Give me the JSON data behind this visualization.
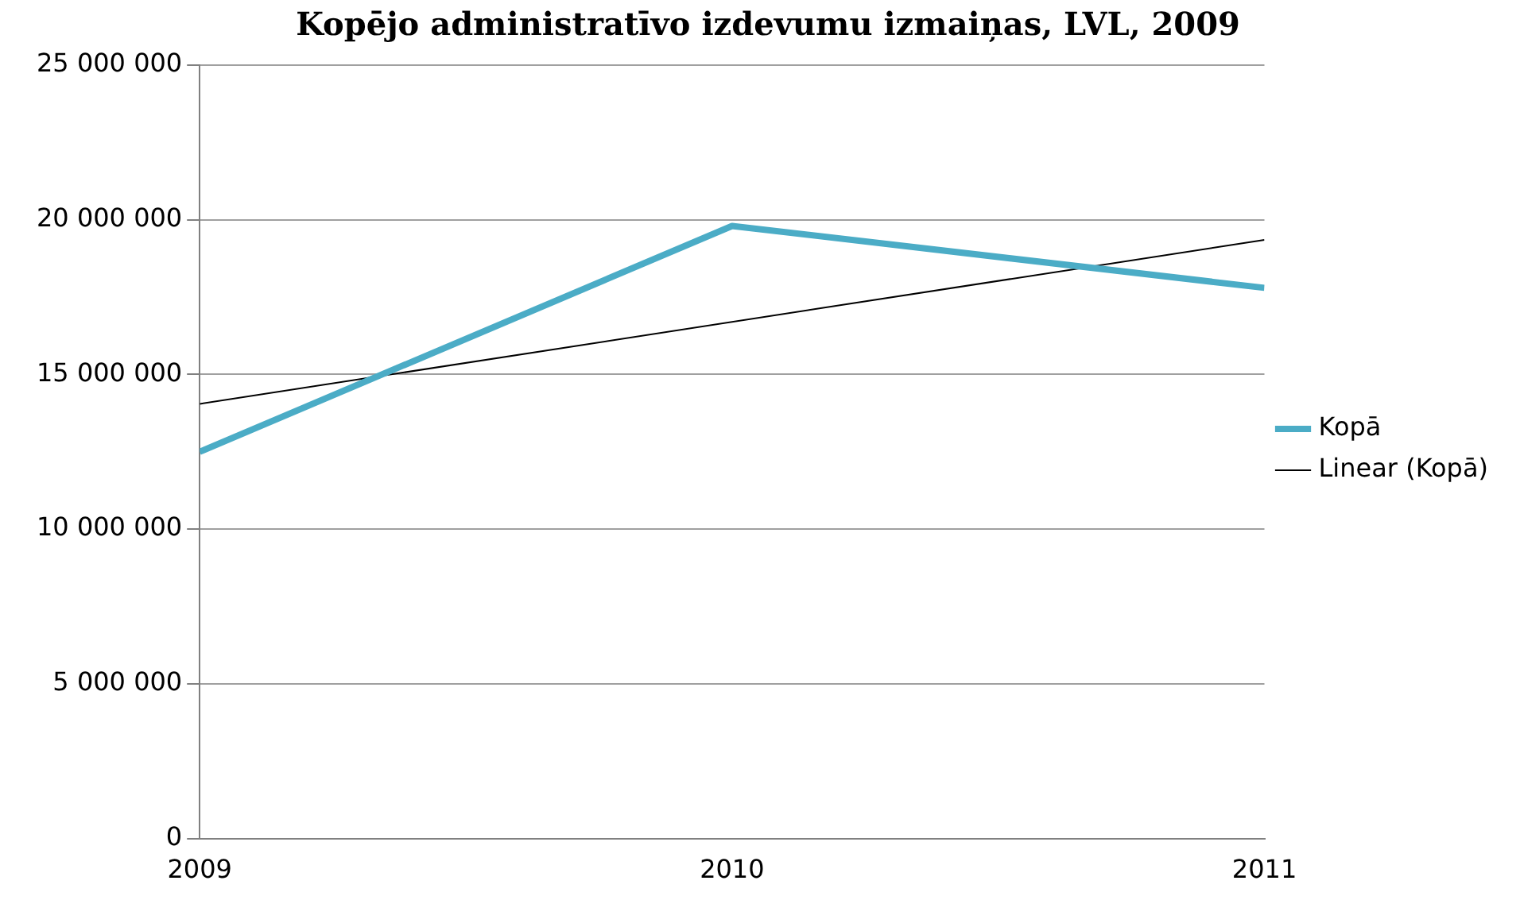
{
  "chart_data": {
    "type": "line",
    "title": "Kopējo administratīvo izdevumu izmaiņas, LVL, 2009",
    "x": [
      2009,
      2010,
      2011
    ],
    "series": [
      {
        "name": "Kopā",
        "color": "#4bacc6",
        "values": [
          12500000,
          19800000,
          17800000
        ]
      },
      {
        "name": "Linear (Kopā)",
        "type": "line",
        "color": "#000000",
        "x": [
          2009,
          2011
        ],
        "values": [
          14050000,
          19350000
        ]
      }
    ],
    "xlim": [
      2009,
      2011
    ],
    "xticks": [
      2009,
      2010,
      2011
    ],
    "ylim": [
      0,
      25000000
    ],
    "yticks": [
      0,
      {
        "value": 5000000,
        "label": "5 000 000"
      },
      {
        "value": 10000000,
        "label": "10 000 000"
      },
      {
        "value": 15000000,
        "label": "15 000 000"
      },
      {
        "value": 20000000,
        "label": "20 000 000"
      },
      {
        "value": 25000000,
        "label": "25 000 000"
      }
    ],
    "grid": "y",
    "legend": "right",
    "marker": "none"
  }
}
